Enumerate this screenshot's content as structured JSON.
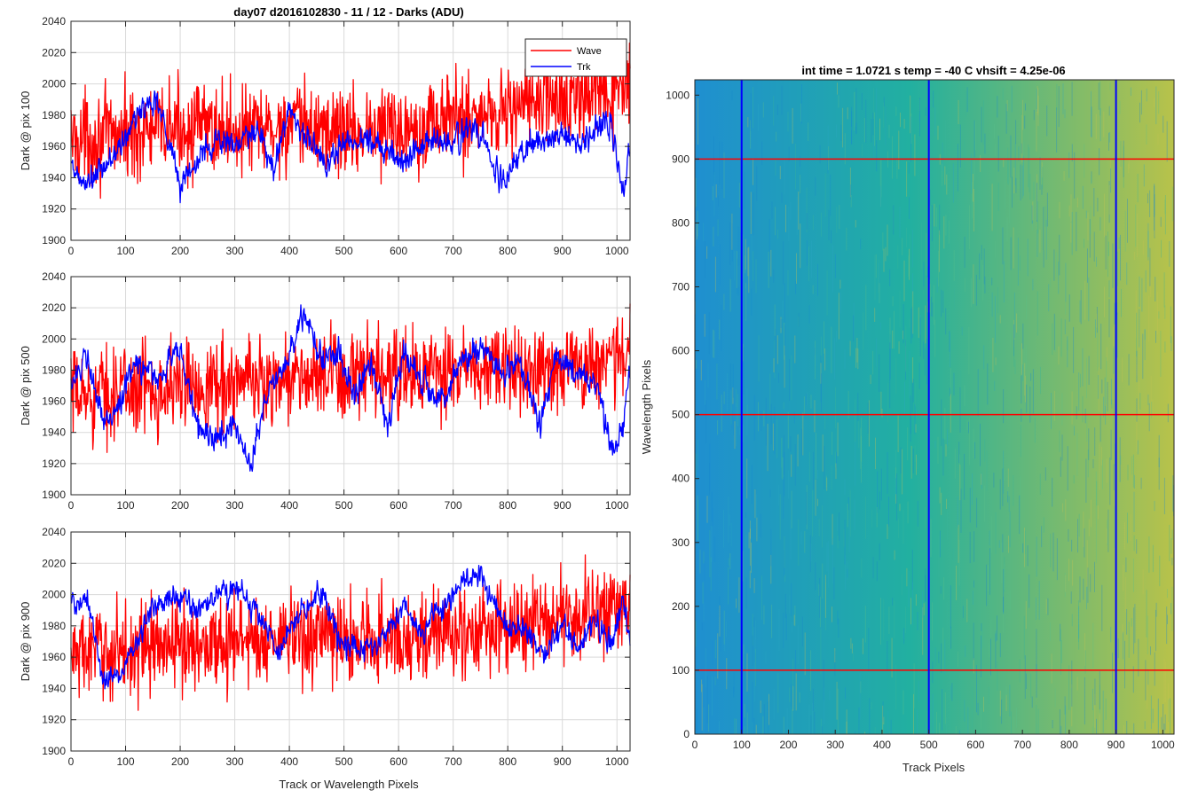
{
  "figure": {
    "title": "day07 d2016102830 - 11 / 12 - Darks (ADU)",
    "shared_xlabel": "Track or Wavelength Pixels"
  },
  "colors": {
    "wave": "#ff0000",
    "trk": "#0000ff",
    "grid": "#d9d9d9",
    "axis": "#262626",
    "heatmap_low": "#1f8fd0",
    "heatmap_mid": "#22b0a0",
    "heatmap_high": "#b8c24a"
  },
  "chart_data": [
    {
      "type": "line",
      "ylabel": "Dark @ pix 100",
      "xlim": [
        0,
        1024
      ],
      "ylim": [
        1900,
        2040
      ],
      "xticks": [
        0,
        100,
        200,
        300,
        400,
        500,
        600,
        700,
        800,
        900,
        1000
      ],
      "yticks": [
        1900,
        1920,
        1940,
        1960,
        1980,
        2000,
        2020,
        2040
      ],
      "grid": true,
      "legend": {
        "position": "top-right",
        "entries": [
          "Wave",
          "Trk"
        ]
      },
      "series": [
        {
          "name": "Wave",
          "color": "#ff0000",
          "approx_profile_x": [
            0,
            50,
            100,
            150,
            200,
            250,
            300,
            350,
            400,
            450,
            500,
            550,
            600,
            650,
            700,
            750,
            800,
            850,
            900,
            950,
            1000,
            1024
          ],
          "approx_profile_y": [
            1965,
            1965,
            1968,
            1970,
            1972,
            1972,
            1970,
            1970,
            1972,
            1972,
            1970,
            1970,
            1972,
            1975,
            1978,
            1980,
            1985,
            1988,
            1990,
            1992,
            1995,
            1998
          ],
          "approx_noise": 18
        },
        {
          "name": "Trk",
          "color": "#0000ff",
          "approx_profile_x": [
            0,
            25,
            60,
            100,
            130,
            160,
            200,
            240,
            270,
            300,
            340,
            370,
            400,
            430,
            470,
            500,
            540,
            580,
            610,
            640,
            680,
            700,
            730,
            760,
            790,
            810,
            840,
            880,
            920,
            960,
            990,
            1010,
            1024
          ],
          "approx_profile_y": [
            1945,
            1935,
            1945,
            1965,
            1985,
            1990,
            1935,
            1955,
            1965,
            1960,
            1970,
            1945,
            1985,
            1965,
            1950,
            1962,
            1965,
            1960,
            1948,
            1965,
            1962,
            1962,
            1972,
            1962,
            1935,
            1950,
            1960,
            1968,
            1962,
            1970,
            1978,
            1930,
            1960
          ],
          "approx_noise": 8
        }
      ]
    },
    {
      "type": "line",
      "ylabel": "Dark @ pix 500",
      "xlim": [
        0,
        1024
      ],
      "ylim": [
        1900,
        2040
      ],
      "xticks": [
        0,
        100,
        200,
        300,
        400,
        500,
        600,
        700,
        800,
        900,
        1000
      ],
      "yticks": [
        1900,
        1920,
        1940,
        1960,
        1980,
        2000,
        2020,
        2040
      ],
      "grid": true,
      "series": [
        {
          "name": "Wave",
          "color": "#ff0000",
          "approx_profile_x": [
            0,
            100,
            200,
            300,
            400,
            500,
            600,
            700,
            800,
            900,
            1000,
            1024
          ],
          "approx_profile_y": [
            1962,
            1968,
            1970,
            1972,
            1975,
            1975,
            1976,
            1978,
            1980,
            1982,
            1988,
            1990
          ],
          "approx_noise": 18
        },
        {
          "name": "Trk",
          "color": "#0000ff",
          "approx_profile_x": [
            0,
            30,
            60,
            90,
            120,
            160,
            200,
            230,
            260,
            300,
            330,
            360,
            400,
            430,
            460,
            490,
            520,
            550,
            580,
            610,
            640,
            680,
            720,
            760,
            790,
            820,
            860,
            890,
            920,
            960,
            990,
            1010,
            1024
          ],
          "approx_profile_y": [
            1975,
            1985,
            1945,
            1960,
            1985,
            1975,
            1995,
            1945,
            1935,
            1945,
            1920,
            1965,
            1990,
            2018,
            1985,
            1990,
            1965,
            1985,
            1948,
            1990,
            1975,
            1960,
            1990,
            1990,
            1975,
            1985,
            1945,
            1990,
            1978,
            1972,
            1928,
            1940,
            1980
          ],
          "approx_noise": 8
        }
      ]
    },
    {
      "type": "line",
      "ylabel": "Dark @ pix 900",
      "xlim": [
        0,
        1024
      ],
      "ylim": [
        1900,
        2040
      ],
      "xticks": [
        0,
        100,
        200,
        300,
        400,
        500,
        600,
        700,
        800,
        900,
        1000
      ],
      "yticks": [
        1900,
        1920,
        1940,
        1960,
        1980,
        2000,
        2020,
        2040
      ],
      "grid": true,
      "series": [
        {
          "name": "Wave",
          "color": "#ff0000",
          "approx_profile_x": [
            0,
            100,
            200,
            300,
            400,
            500,
            600,
            700,
            800,
            900,
            1000,
            1024
          ],
          "approx_profile_y": [
            1962,
            1965,
            1968,
            1970,
            1972,
            1972,
            1972,
            1975,
            1978,
            1985,
            1992,
            1988
          ],
          "approx_noise": 18
        },
        {
          "name": "Trk",
          "color": "#0000ff",
          "approx_profile_x": [
            0,
            30,
            60,
            90,
            120,
            150,
            190,
            230,
            270,
            310,
            350,
            380,
            420,
            460,
            490,
            530,
            570,
            610,
            640,
            680,
            720,
            750,
            790,
            830,
            870,
            900,
            930,
            960,
            990,
            1010,
            1024
          ],
          "approx_profile_y": [
            1995,
            1995,
            1945,
            1950,
            1968,
            1995,
            2000,
            1990,
            2000,
            2002,
            1985,
            1960,
            1990,
            2000,
            1972,
            1965,
            1972,
            1995,
            1975,
            1990,
            2008,
            2012,
            1982,
            1978,
            1962,
            1980,
            1968,
            1985,
            1968,
            1995,
            1975
          ],
          "approx_noise": 7
        }
      ]
    },
    {
      "type": "heatmap",
      "title": "int time = 1.0721 s    temp = -40 C    vhsift = 4.25e-06",
      "xlabel": "Track Pixels",
      "ylabel": "Wavelength Pixels",
      "xlim": [
        0,
        1024
      ],
      "ylim": [
        0,
        1024
      ],
      "xticks": [
        0,
        100,
        200,
        300,
        400,
        500,
        600,
        700,
        800,
        900,
        1000
      ],
      "yticks": [
        0,
        100,
        200,
        300,
        400,
        500,
        600,
        700,
        800,
        900,
        1000
      ],
      "colormap": "parula",
      "trend": "values increase toward the right (higher track pixels)",
      "marker_lines": {
        "vertical": {
          "color": "#0000ff",
          "x": [
            100,
            500,
            900
          ]
        },
        "horizontal": {
          "color": "#ff0000",
          "y": [
            100,
            500,
            900
          ]
        }
      }
    }
  ]
}
